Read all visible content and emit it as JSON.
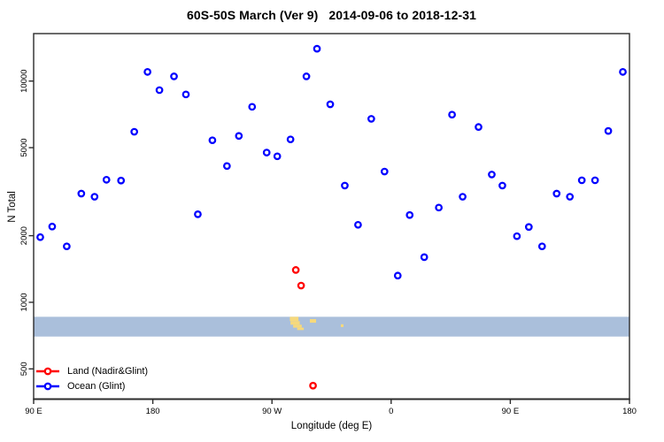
{
  "colors": {
    "ocean": "#0000ff",
    "land": "#ff0000",
    "band": "#aabfdb",
    "land_map": "#f6d97c",
    "axis": "#2b2b2b",
    "text": "#000000"
  },
  "legend": {
    "items": [
      {
        "label": "Land (Nadir&Glint)",
        "color": "#ff0000"
      },
      {
        "label": "Ocean (Glint)",
        "color": "#0000ff"
      }
    ]
  },
  "chart_data": {
    "type": "scatter",
    "title": "60S-50S March (Ver 9)   2014-09-06 to 2018-12-31",
    "xlabel": "Longitude (deg E)",
    "ylabel": "N Total",
    "x_axis": {
      "note": "longitude increases eastward from 90E, wrapping 90E-180-90W-0-90E-180; positions in degrees east of the left edge (90E)",
      "range": [
        0,
        450
      ],
      "ticks": [
        {
          "pos": 0,
          "label": "90 E"
        },
        {
          "pos": 90,
          "label": "180"
        },
        {
          "pos": 180,
          "label": "90 W"
        },
        {
          "pos": 270,
          "label": "0"
        },
        {
          "pos": 360,
          "label": "90 E"
        },
        {
          "pos": 450,
          "label": "180"
        }
      ]
    },
    "y_axis": {
      "scale": "log",
      "range": [
        365,
        16390
      ],
      "ticks": [
        500,
        1000,
        2000,
        5000,
        10000
      ],
      "grid": false
    },
    "band": {
      "note": "latitude-band map strip: ocean shown as blue band, land fragments in yellow",
      "y_range": [
        700,
        860
      ],
      "fragments": [
        {
          "name": "patagonia-north",
          "x": [
            193.5,
            200.0
          ],
          "y": [
            0.0,
            0.22
          ]
        },
        {
          "name": "patagonia-mid",
          "x": [
            194.0,
            201.0
          ],
          "y": [
            0.22,
            0.4
          ]
        },
        {
          "name": "patagonia-south",
          "x": [
            196.0,
            202.5
          ],
          "y": [
            0.4,
            0.55
          ]
        },
        {
          "name": "patagonia-tip",
          "x": [
            199.0,
            204.0
          ],
          "y": [
            0.55,
            0.67
          ]
        },
        {
          "name": "falkland-islands",
          "x": [
            208.6,
            213.3
          ],
          "y": [
            0.12,
            0.3
          ]
        },
        {
          "name": "south-georgia",
          "x": [
            232.0,
            234.0
          ],
          "y": [
            0.38,
            0.52
          ]
        }
      ]
    },
    "series": [
      {
        "name": "Ocean (Glint)",
        "color": "#0000ff",
        "marker": "open-circle",
        "points": [
          [
            214,
            14000
          ],
          [
            86,
            11000
          ],
          [
            106,
            10500
          ],
          [
            206,
            10500
          ],
          [
            95,
            9100
          ],
          [
            115,
            8700
          ],
          [
            165,
            7650
          ],
          [
            224,
            7850
          ],
          [
            76,
            5900
          ],
          [
            135,
            5400
          ],
          [
            155,
            5650
          ],
          [
            194,
            5450
          ],
          [
            176,
            4750
          ],
          [
            184,
            4570
          ],
          [
            146,
            4130
          ],
          [
            55,
            3580
          ],
          [
            66,
            3550
          ],
          [
            36,
            3100
          ],
          [
            46,
            3000
          ],
          [
            124,
            2500
          ],
          [
            14,
            2200
          ],
          [
            445,
            11000
          ],
          [
            255,
            6750
          ],
          [
            316,
            7050
          ],
          [
            336,
            6200
          ],
          [
            434,
            5950
          ],
          [
            265,
            3900
          ],
          [
            235,
            3370
          ],
          [
            346,
            3780
          ],
          [
            354,
            3370
          ],
          [
            324,
            3000
          ],
          [
            306,
            2680
          ],
          [
            284,
            2480
          ],
          [
            395,
            3100
          ],
          [
            405,
            3000
          ],
          [
            414,
            3560
          ],
          [
            424,
            3560
          ],
          [
            245,
            2240
          ],
          [
            374,
            2190
          ],
          [
            5,
            1970
          ],
          [
            25,
            1790
          ],
          [
            365,
            1990
          ],
          [
            384,
            1790
          ],
          [
            295,
            1600
          ],
          [
            275,
            1320
          ]
        ]
      },
      {
        "name": "Land (Nadir&Glint)",
        "color": "#ff0000",
        "marker": "open-circle",
        "points": [
          [
            198,
            1400
          ],
          [
            202,
            1190
          ],
          [
            211,
            420
          ]
        ]
      }
    ]
  }
}
